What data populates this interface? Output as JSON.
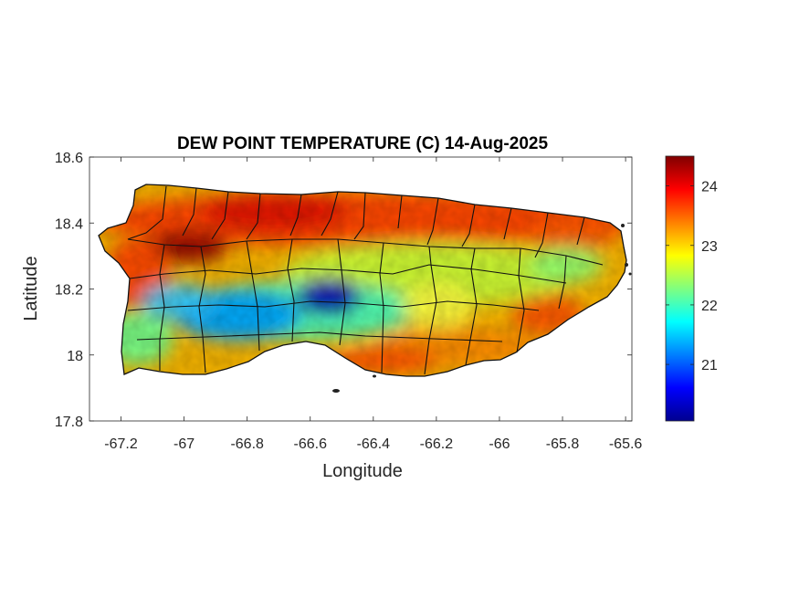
{
  "chart_data": {
    "type": "heatmap",
    "title": "DEW POINT TEMPERATURE (C) 14-Aug-2025",
    "xlabel": "Longitude",
    "ylabel": "Latitude",
    "xlim": [
      -67.3,
      -65.58
    ],
    "ylim": [
      17.8,
      18.6
    ],
    "xticks": [
      -67.2,
      -67,
      -66.8,
      -66.6,
      -66.4,
      -66.2,
      -66,
      -65.8,
      -65.6
    ],
    "xtick_labels": [
      "-67.2",
      "-67",
      "-66.8",
      "-66.6",
      "-66.4",
      "-66.2",
      "-66",
      "-65.8",
      "-65.6"
    ],
    "yticks": [
      17.8,
      18,
      18.2,
      18.4,
      18.6
    ],
    "ytick_labels": [
      "17.8",
      "18",
      "18.2",
      "18.4",
      "18.6"
    ],
    "colorbar": {
      "colormap": "jet",
      "range": [
        20.05,
        24.5
      ],
      "ticks": [
        21,
        22,
        23,
        24
      ],
      "tick_labels": [
        "21",
        "22",
        "23",
        "24"
      ]
    },
    "grid": false,
    "legend": "colorbar-right"
  }
}
